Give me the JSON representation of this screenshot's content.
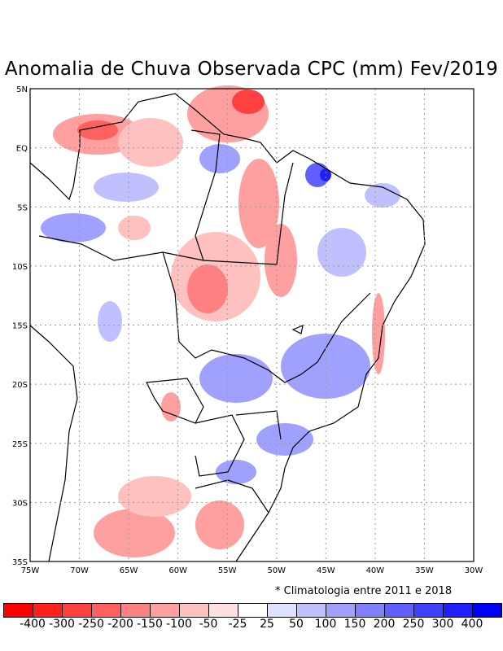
{
  "title": "Anomalia de Chuva Observada CPC (mm) Fev/2019",
  "note": "* Climatologia entre 2011 e 2018",
  "lat_labels": [
    "5N",
    "EQ",
    "5S",
    "10S",
    "15S",
    "20S",
    "25S",
    "30S",
    "35S"
  ],
  "lon_labels": [
    "75W",
    "70W",
    "65W",
    "60W",
    "55W",
    "50W",
    "45W",
    "40W",
    "35W",
    "30W"
  ],
  "colorbar": {
    "colors": [
      "#ff0000",
      "#ff2020",
      "#ff4040",
      "#ff6060",
      "#ff8080",
      "#ffa0a0",
      "#ffc0c0",
      "#ffe0e0",
      "#ffffff",
      "#e0e0ff",
      "#c0c0ff",
      "#a0a0ff",
      "#8080ff",
      "#6060ff",
      "#4040ff",
      "#2020ff",
      "#0000ff"
    ],
    "labels": [
      "-400",
      "-300",
      "-250",
      "-200",
      "-150",
      "-100",
      "-50",
      "-25",
      "25",
      "50",
      "100",
      "150",
      "200",
      "250",
      "300",
      "400"
    ]
  }
}
